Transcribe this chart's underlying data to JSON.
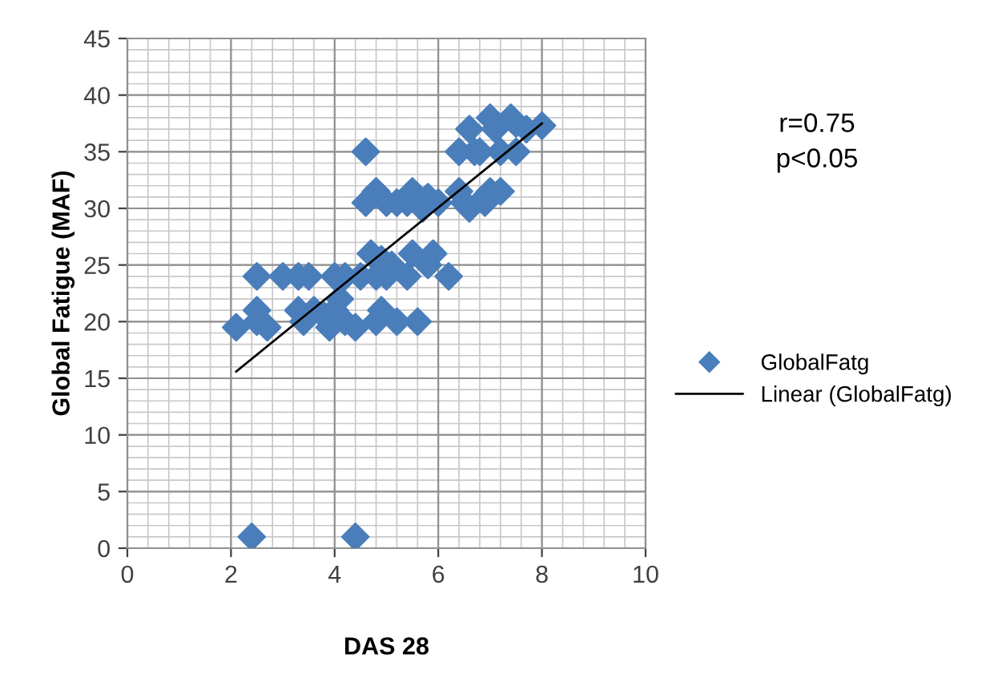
{
  "chart_data": {
    "type": "scatter",
    "xlabel": "DAS 28",
    "ylabel": "Global Fatigue (MAF)",
    "xlim": [
      0,
      10
    ],
    "ylim": [
      0,
      45
    ],
    "xticks": [
      0,
      2,
      4,
      6,
      8,
      10
    ],
    "yticks": [
      0,
      5,
      10,
      15,
      20,
      25,
      30,
      35,
      40,
      45
    ],
    "grid": true,
    "legend": "right",
    "marker": "diamond",
    "annotations": [
      "r=0.75",
      "p<0.05"
    ],
    "series": [
      {
        "name": "GlobalFatg",
        "color": "#4a7ebb",
        "x": [
          2.1,
          2.4,
          2.5,
          2.5,
          2.5,
          2.7,
          3.0,
          3.3,
          3.5,
          3.3,
          3.4,
          3.6,
          3.8,
          3.9,
          4.0,
          4.2,
          4.0,
          4.1,
          4.2,
          4.4,
          4.4,
          4.5,
          4.6,
          4.6,
          4.7,
          4.8,
          4.8,
          4.9,
          4.9,
          4.8,
          5.0,
          5.0,
          5.1,
          5.2,
          5.2,
          5.4,
          5.4,
          5.5,
          5.5,
          5.6,
          5.7,
          5.8,
          5.9,
          5.8,
          6.0,
          6.2,
          6.4,
          6.4,
          6.5,
          6.6,
          6.6,
          6.7,
          6.8,
          6.9,
          6.9,
          7.0,
          7.0,
          7.1,
          7.2,
          7.2,
          7.4,
          7.5,
          7.5,
          7.7,
          8.0
        ],
        "values": [
          19.5,
          1,
          24,
          21,
          20,
          19.5,
          24,
          24,
          24,
          21,
          20,
          21,
          20.5,
          19.5,
          24,
          24,
          21,
          22,
          20,
          19.5,
          1,
          24,
          35,
          30.5,
          26,
          31.5,
          24,
          25.5,
          21,
          20,
          30.5,
          24,
          25,
          30.5,
          20,
          30.5,
          24,
          31.5,
          26,
          20,
          30,
          25,
          26,
          31,
          30.5,
          24,
          35,
          31.5,
          30.5,
          30,
          37,
          35,
          35,
          31,
          30.5,
          38,
          31.5,
          37,
          35,
          31.5,
          38,
          37.5,
          35,
          37,
          37.3
        ]
      },
      {
        "name": "Linear (GlobalFatg)",
        "type": "line",
        "color": "#000000",
        "marker": "none",
        "line_style": "solid",
        "x": [
          2.1,
          8.0
        ],
        "values": [
          15.6,
          37.5
        ]
      }
    ]
  }
}
